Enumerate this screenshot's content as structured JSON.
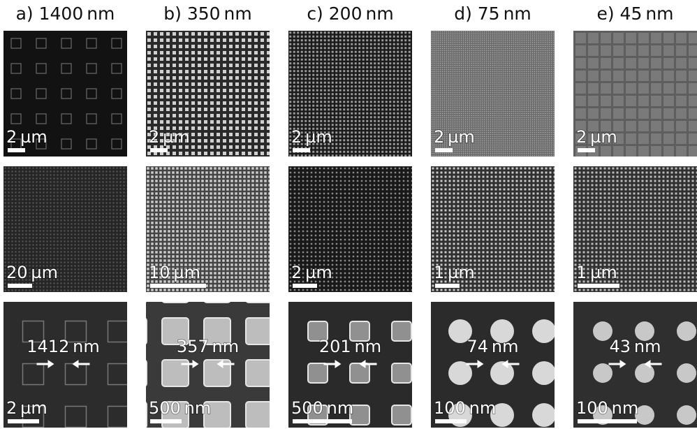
{
  "columns": [
    {
      "header": "a) 1400 nm",
      "panels": [
        {
          "scale": "2 µm"
        },
        {
          "scale": "20 µm"
        },
        {
          "scale": "2 µm",
          "measurement": "1412 nm"
        }
      ]
    },
    {
      "header": "b) 350 nm",
      "panels": [
        {
          "scale": "2 µm"
        },
        {
          "scale": "10 µm"
        },
        {
          "scale": "500 nm",
          "measurement": "357 nm"
        }
      ]
    },
    {
      "header": "c) 200 nm",
      "panels": [
        {
          "scale": "2 µm"
        },
        {
          "scale": "2 µm"
        },
        {
          "scale": "500 nm",
          "measurement": "201 nm"
        }
      ]
    },
    {
      "header": "d) 75 nm",
      "panels": [
        {
          "scale": "2 µm"
        },
        {
          "scale": "1 µm"
        },
        {
          "scale": "100 nm",
          "measurement": "74 nm"
        }
      ]
    },
    {
      "header": "e) 45 nm",
      "panels": [
        {
          "scale": "2 µm"
        },
        {
          "scale": "1 µm"
        },
        {
          "scale": "100 nm",
          "measurement": "43 nm"
        }
      ]
    }
  ]
}
